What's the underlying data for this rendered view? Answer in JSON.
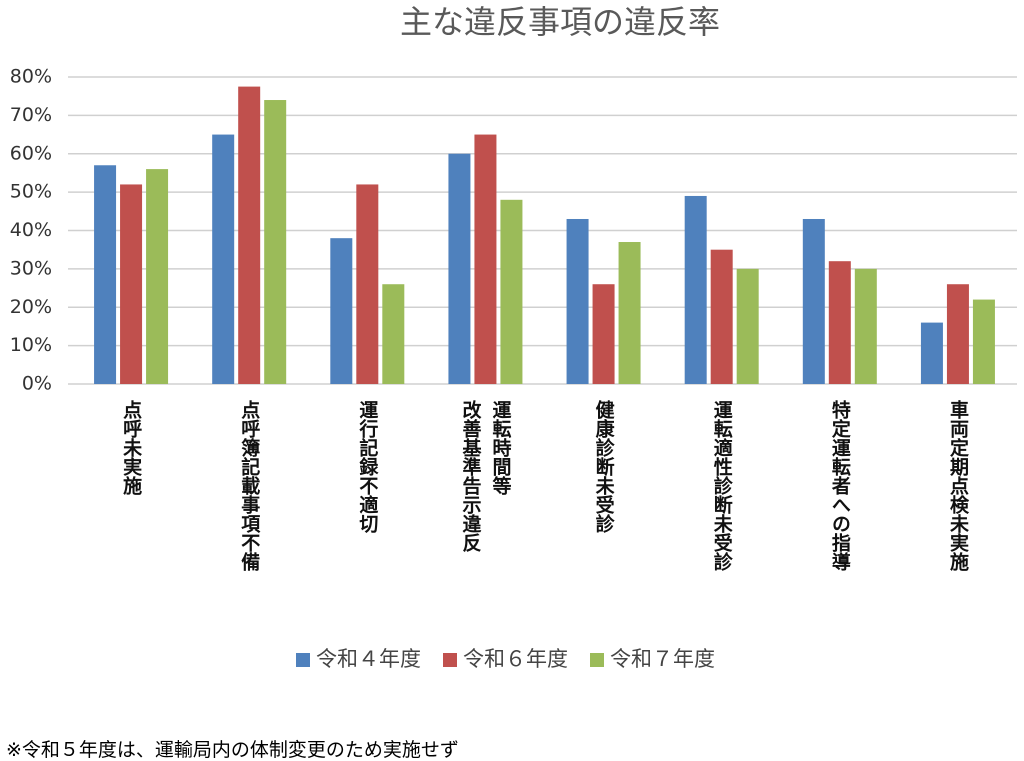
{
  "chart_data": {
    "type": "bar",
    "title": "主な違反事項の違反率",
    "categories": [
      "点呼未実施",
      "点呼簿記載事項不備",
      "運行記録不適切",
      "運転時間等\n改善基準告示違反",
      "健康診断未受診",
      "運転適性診断未受診",
      "特定運転者への指導",
      "車両定期点検未実施"
    ],
    "series": [
      {
        "name": "令和４年度",
        "color": "#4f81bd",
        "values": [
          57,
          65,
          38,
          60,
          43,
          49,
          43,
          16
        ]
      },
      {
        "name": "令和６年度",
        "color": "#c0504d",
        "values": [
          52,
          77.5,
          52,
          65,
          26,
          35,
          32,
          26
        ]
      },
      {
        "name": "令和７年度",
        "color": "#9bbb59",
        "values": [
          56,
          74,
          26,
          48,
          37,
          30,
          30,
          22
        ]
      }
    ],
    "ylim": [
      0,
      80
    ],
    "yticks": [
      {
        "value": 0,
        "label": "0%"
      },
      {
        "value": 10,
        "label": "10%"
      },
      {
        "value": 20,
        "label": "20%"
      },
      {
        "value": 30,
        "label": "30%"
      },
      {
        "value": 40,
        "label": "40%"
      },
      {
        "value": 50,
        "label": "50%"
      },
      {
        "value": 60,
        "label": "60%"
      },
      {
        "value": 70,
        "label": "70%"
      },
      {
        "value": 80,
        "label": "80%"
      }
    ],
    "grid": true,
    "legend": "bottom",
    "footnote": "※令和５年度は、運輸局内の体制変更のため実施せず"
  }
}
